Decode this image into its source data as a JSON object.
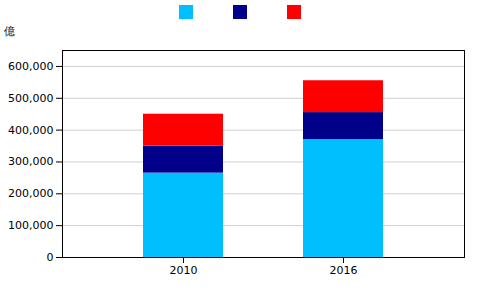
{
  "chart_data": {
    "type": "bar",
    "ylabel": "億",
    "categories": [
      "2010",
      "2016"
    ],
    "series": [
      {
        "color": "#00BFFF",
        "values": [
          265000,
          370000
        ]
      },
      {
        "color": "#00008B",
        "values": [
          85000,
          85000
        ]
      },
      {
        "color": "#FF0000",
        "values": [
          100000,
          100000
        ]
      }
    ],
    "stacked": true,
    "ylim": [
      0,
      650000
    ],
    "yticks": [
      0,
      {
        "value": 100000,
        "label": "100,000"
      },
      {
        "value": 200000,
        "label": "200,000"
      },
      {
        "value": 300000,
        "label": "300,000"
      },
      {
        "value": 400000,
        "label": "400,000"
      },
      {
        "value": 500000,
        "label": "500,000"
      },
      {
        "value": 600000,
        "label": "600,000"
      }
    ],
    "grid": true,
    "legend": "top"
  }
}
